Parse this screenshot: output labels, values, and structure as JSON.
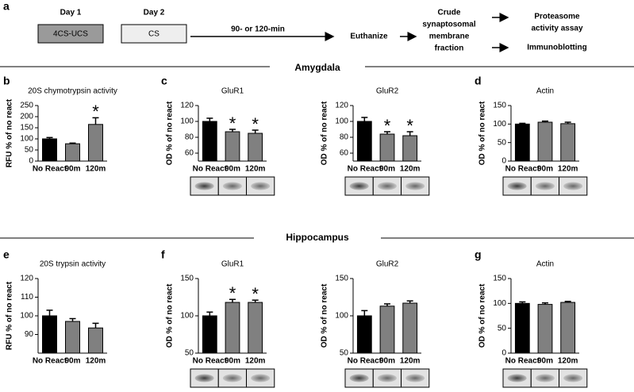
{
  "panel_labels": [
    "a",
    "b",
    "c",
    "d",
    "e",
    "f",
    "g"
  ],
  "timeline": {
    "day1": "Day 1",
    "box1": "4CS-UCS",
    "day2": "Day 2",
    "box2": "CS",
    "interval": "90- or 120-min",
    "step1": "Euthanize",
    "step2": [
      "Crude",
      "synaptosomal",
      "membrane",
      "fraction"
    ],
    "output1": [
      "Proteasome",
      "activity assay"
    ],
    "output2": "Immunoblotting"
  },
  "section_titles": [
    "Amygdala",
    "Hippocampus"
  ],
  "chart_data": [
    {
      "type": "bar",
      "title": "20S chymotrypsin activity",
      "ylabel": "RFU % of no react",
      "categories": [
        "No React",
        "90m",
        "120m"
      ],
      "values": [
        100,
        78,
        165
      ],
      "errors": [
        6,
        3,
        30
      ],
      "markers": [
        null,
        null,
        "*"
      ],
      "colors": [
        "#000000",
        "#808080",
        "#808080"
      ],
      "ylim": [
        0,
        250
      ],
      "yticks": [
        0,
        50,
        100,
        150,
        200,
        250
      ],
      "blot": false
    },
    {
      "type": "bar",
      "title": "GluR1",
      "ylabel": "OD % of no react",
      "categories": [
        "No React",
        "90m",
        "120m"
      ],
      "values": [
        100,
        87,
        85
      ],
      "errors": [
        4,
        3,
        4
      ],
      "markers": [
        null,
        "*",
        "*"
      ],
      "colors": [
        "#000000",
        "#808080",
        "#808080"
      ],
      "ylim": [
        50,
        120
      ],
      "yticks": [
        60,
        80,
        100,
        120
      ],
      "blot": true
    },
    {
      "type": "bar",
      "title": "GluR2",
      "ylabel": "OD % of no react",
      "categories": [
        "No React",
        "90m",
        "120m"
      ],
      "values": [
        100,
        84,
        82
      ],
      "errors": [
        5,
        3,
        5
      ],
      "markers": [
        null,
        "*",
        "*"
      ],
      "colors": [
        "#000000",
        "#808080",
        "#808080"
      ],
      "ylim": [
        50,
        120
      ],
      "yticks": [
        60,
        80,
        100,
        120
      ],
      "blot": true
    },
    {
      "type": "bar",
      "title": "Actin",
      "ylabel": "OD % of no react",
      "categories": [
        "No React",
        "90m",
        "120m"
      ],
      "values": [
        100,
        105,
        101
      ],
      "errors": [
        2,
        3,
        4
      ],
      "markers": [
        null,
        null,
        null
      ],
      "colors": [
        "#000000",
        "#808080",
        "#808080"
      ],
      "ylim": [
        0,
        150
      ],
      "yticks": [
        0,
        50,
        100,
        150
      ],
      "blot": true
    },
    {
      "type": "bar",
      "title": "20S trypsin activity",
      "ylabel": "RFU % of no react",
      "categories": [
        "No React",
        "90m",
        "120m"
      ],
      "values": [
        100,
        97,
        93.5
      ],
      "errors": [
        3,
        1.5,
        2.5
      ],
      "markers": [
        null,
        null,
        null
      ],
      "colors": [
        "#000000",
        "#808080",
        "#808080"
      ],
      "ylim": [
        80,
        120
      ],
      "yticks": [
        90,
        100,
        110,
        120
      ],
      "blot": false
    },
    {
      "type": "bar",
      "title": "GluR1",
      "ylabel": "OD % of no react",
      "categories": [
        "No React",
        "90m",
        "120m"
      ],
      "values": [
        100,
        118,
        118
      ],
      "errors": [
        5,
        4,
        3
      ],
      "markers": [
        null,
        "*",
        "*"
      ],
      "colors": [
        "#000000",
        "#808080",
        "#808080"
      ],
      "ylim": [
        50,
        150
      ],
      "yticks": [
        50,
        100,
        150
      ],
      "blot": true
    },
    {
      "type": "bar",
      "title": "GluR2",
      "ylabel": "OD % of no react",
      "categories": [
        "No React",
        "90m",
        "120m"
      ],
      "values": [
        100,
        113,
        117
      ],
      "errors": [
        7,
        3,
        3
      ],
      "markers": [
        null,
        null,
        null
      ],
      "colors": [
        "#000000",
        "#808080",
        "#808080"
      ],
      "ylim": [
        50,
        150
      ],
      "yticks": [
        50,
        100,
        150
      ],
      "blot": true
    },
    {
      "type": "bar",
      "title": "Actin",
      "ylabel": "OD % of no react",
      "categories": [
        "No React",
        "90m",
        "120m"
      ],
      "values": [
        100,
        98,
        102
      ],
      "errors": [
        3,
        3,
        2
      ],
      "markers": [
        null,
        null,
        null
      ],
      "colors": [
        "#000000",
        "#808080",
        "#808080"
      ],
      "ylim": [
        0,
        150
      ],
      "yticks": [
        0,
        50,
        100,
        150
      ],
      "blot": true
    }
  ]
}
